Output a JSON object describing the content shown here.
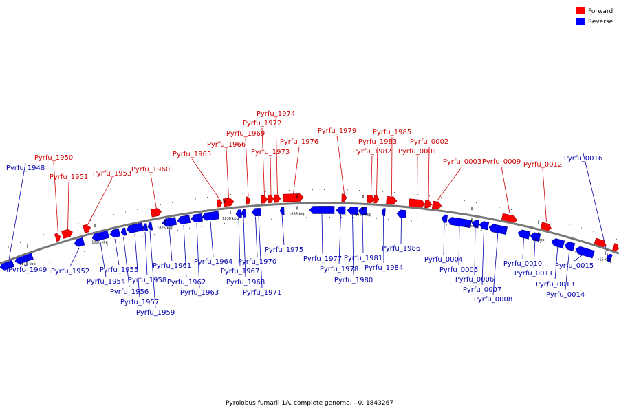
{
  "caption": "Pyrolobus fumarii 1A, complete genome. - 0..1843267",
  "legend": {
    "forward_label": "Forward",
    "reverse_label": "Reverse",
    "forward_color": "#ff0000",
    "reverse_color": "#0000ff"
  },
  "colors": {
    "backbone": "#777777",
    "tick": "#000000",
    "forward_label": "#cc0000",
    "reverse_label": "#0000aa"
  },
  "ticks": [
    {
      "label": "1815 kbp"
    },
    {
      "label": "1820 kbp"
    },
    {
      "label": "1825 kbp"
    },
    {
      "label": "1830 kbp"
    },
    {
      "label": "1835 kbp"
    },
    {
      "label": "1840 kbp"
    },
    {
      "label": "5 kbp"
    },
    {
      "label": "10 kbp"
    },
    {
      "label": "15 kbp"
    }
  ],
  "genes": [
    {
      "name": "Pyrfu_1948",
      "strand": "reverse"
    },
    {
      "name": "Pyrfu_1949",
      "strand": "reverse"
    },
    {
      "name": "Pyrfu_1950",
      "strand": "forward"
    },
    {
      "name": "Pyrfu_1951",
      "strand": "forward"
    },
    {
      "name": "Pyrfu_1952",
      "strand": "reverse"
    },
    {
      "name": "Pyrfu_1953",
      "strand": "forward"
    },
    {
      "name": "Pyrfu_1954",
      "strand": "reverse"
    },
    {
      "name": "Pyrfu_1955",
      "strand": "reverse"
    },
    {
      "name": "Pyrfu_1956",
      "strand": "reverse"
    },
    {
      "name": "Pyrfu_1957",
      "strand": "reverse"
    },
    {
      "name": "Pyrfu_1958",
      "strand": "reverse"
    },
    {
      "name": "Pyrfu_1959",
      "strand": "reverse"
    },
    {
      "name": "Pyrfu_1960",
      "strand": "forward"
    },
    {
      "name": "Pyrfu_1961",
      "strand": "reverse"
    },
    {
      "name": "Pyrfu_1962",
      "strand": "reverse"
    },
    {
      "name": "Pyrfu_1963",
      "strand": "reverse"
    },
    {
      "name": "Pyrfu_1964",
      "strand": "reverse"
    },
    {
      "name": "Pyrfu_1965",
      "strand": "forward"
    },
    {
      "name": "Pyrfu_1966",
      "strand": "forward"
    },
    {
      "name": "Pyrfu_1967",
      "strand": "reverse"
    },
    {
      "name": "Pyrfu_1968",
      "strand": "reverse"
    },
    {
      "name": "Pyrfu_1969",
      "strand": "forward"
    },
    {
      "name": "Pyrfu_1970",
      "strand": "reverse"
    },
    {
      "name": "Pyrfu_1971",
      "strand": "reverse"
    },
    {
      "name": "Pyrfu_1972",
      "strand": "forward"
    },
    {
      "name": "Pyrfu_1973",
      "strand": "forward"
    },
    {
      "name": "Pyrfu_1974",
      "strand": "forward"
    },
    {
      "name": "Pyrfu_1975",
      "strand": "reverse"
    },
    {
      "name": "Pyrfu_1976",
      "strand": "forward"
    },
    {
      "name": "Pyrfu_1977",
      "strand": "reverse"
    },
    {
      "name": "Pyrfu_1978",
      "strand": "reverse"
    },
    {
      "name": "Pyrfu_1979",
      "strand": "forward"
    },
    {
      "name": "Pyrfu_1980",
      "strand": "reverse"
    },
    {
      "name": "Pyrfu_1981",
      "strand": "reverse"
    },
    {
      "name": "Pyrfu_1982",
      "strand": "forward"
    },
    {
      "name": "Pyrfu_1983",
      "strand": "forward"
    },
    {
      "name": "Pyrfu_1984",
      "strand": "reverse"
    },
    {
      "name": "Pyrfu_1985",
      "strand": "forward"
    },
    {
      "name": "Pyrfu_1986",
      "strand": "reverse"
    },
    {
      "name": "Pyrfu_0001",
      "strand": "forward"
    },
    {
      "name": "Pyrfu_0002",
      "strand": "forward"
    },
    {
      "name": "Pyrfu_0003",
      "strand": "forward"
    },
    {
      "name": "Pyrfu_0004",
      "strand": "reverse"
    },
    {
      "name": "Pyrfu_0005",
      "strand": "reverse"
    },
    {
      "name": "Pyrfu_0006",
      "strand": "reverse"
    },
    {
      "name": "Pyrfu_0007",
      "strand": "reverse"
    },
    {
      "name": "Pyrfu_0008",
      "strand": "reverse"
    },
    {
      "name": "Pyrfu_0009",
      "strand": "forward"
    },
    {
      "name": "Pyrfu_0010",
      "strand": "reverse"
    },
    {
      "name": "Pyrfu_0011",
      "strand": "reverse"
    },
    {
      "name": "Pyrfu_0012",
      "strand": "forward"
    },
    {
      "name": "Pyrfu_0013",
      "strand": "reverse"
    },
    {
      "name": "Pyrfu_0014",
      "strand": "reverse"
    },
    {
      "name": "Pyrfu_0015",
      "strand": "reverse"
    },
    {
      "name": "Pyrfu_0016",
      "strand": "reverse"
    }
  ]
}
